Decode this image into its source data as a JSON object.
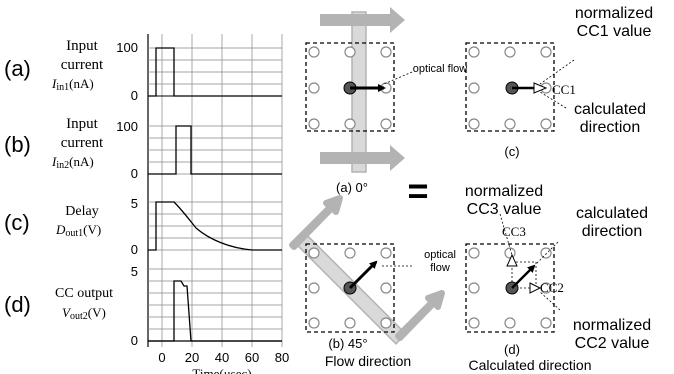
{
  "timing": {
    "panels": [
      {
        "letter": "(a)",
        "title_top": "Input",
        "title_mid": "current",
        "symbol": "I",
        "subscript": "in1",
        "unit": "(nA)",
        "ticks": [
          "100",
          "0"
        ]
      },
      {
        "letter": "(b)",
        "title_top": "Input",
        "title_mid": "current",
        "symbol": "I",
        "subscript": "in2",
        "unit": "(nA)",
        "ticks": [
          "100",
          "0"
        ]
      },
      {
        "letter": "(c)",
        "title_top": "Delay",
        "title_mid": "",
        "symbol": "D",
        "subscript": "out1",
        "unit": "(V)",
        "ticks": [
          "5",
          "0"
        ]
      },
      {
        "letter": "(d)",
        "title_top": "CC output",
        "title_mid": "",
        "symbol": "V",
        "subscript": "out2",
        "unit": "(V)",
        "ticks": [
          "5",
          "0"
        ]
      }
    ],
    "x_ticks": [
      "0",
      "20",
      "40",
      "60",
      "80"
    ],
    "x_label": "Time(μsec)"
  },
  "flow_0": {
    "annotation": "optical flow",
    "caption": "(a) 0°"
  },
  "flow_45": {
    "annotation": "optical flow",
    "caption": "(b) 45°"
  },
  "calc_0": {
    "note_top": "normalized CC1 value",
    "cc_label": "CC1",
    "note_bottom": "calculated direction",
    "caption": "(c)"
  },
  "equals": "=",
  "calc_45": {
    "note_cc3": "normalized CC3 value",
    "cc3_label": "CC3",
    "note_dir": "calculated direction",
    "cc2_label": "CC2",
    "note_cc2": "normalized CC2 value",
    "caption": "(d)"
  },
  "captions": {
    "flow": "Flow direction",
    "calculated": "Calculated direction"
  }
}
